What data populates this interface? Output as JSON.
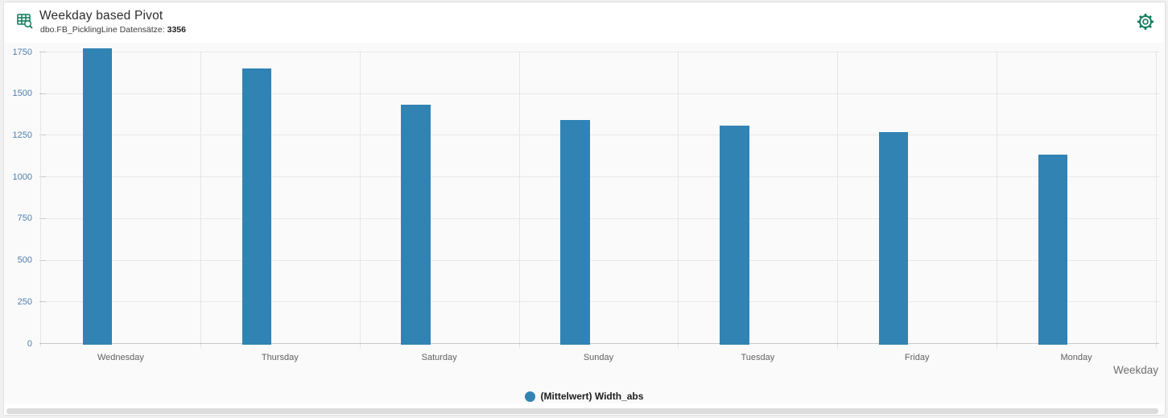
{
  "header": {
    "title": "Weekday based Pivot",
    "subtitle_label": "dbo.FB_PicklingLine Datensätze:",
    "record_count": "3356"
  },
  "icons": {
    "header_icon": "pivot-table-search-icon",
    "settings_icon": "gear-icon",
    "legend_marker": "series-dot"
  },
  "colors": {
    "bar": "#3183b3",
    "icon_green": "#0e7c5a",
    "y_label": "#4e7fae"
  },
  "legend": {
    "label": "(Mittelwert) Width_abs"
  },
  "chart_data": {
    "type": "bar",
    "categories": [
      "Wednesday",
      "Thursday",
      "Saturday",
      "Sunday",
      "Tuesday",
      "Friday",
      "Monday"
    ],
    "values": [
      1770,
      1650,
      1435,
      1340,
      1310,
      1270,
      1135
    ],
    "series": [
      {
        "name": "(Mittelwert) Width_abs",
        "values": [
          1770,
          1650,
          1435,
          1340,
          1310,
          1270,
          1135
        ]
      }
    ],
    "title": "Weekday based Pivot",
    "xlabel": "Weekday",
    "ylabel": "",
    "ylim": [
      0,
      1750
    ],
    "ytick_step": 250,
    "yticks": [
      0,
      250,
      500,
      750,
      1000,
      1250,
      1500,
      1750
    ],
    "grid": true,
    "legend_position": "bottom",
    "bar_color": "#3183b3"
  }
}
